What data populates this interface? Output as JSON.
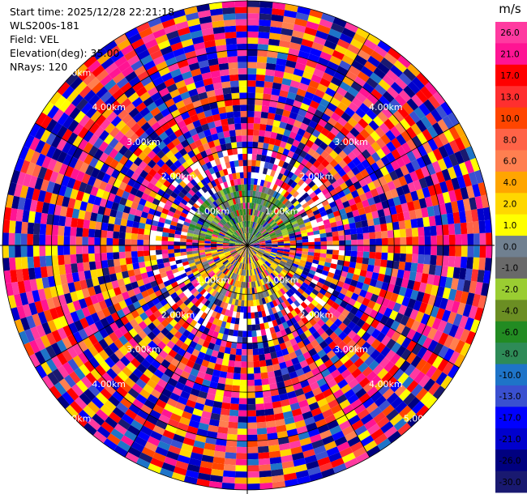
{
  "info": {
    "start_time": "Start time: 2025/12/28 22:21:18",
    "instrument": "WLS200s-181",
    "field": "Field: VEL",
    "elevation": "Elevation(deg): 35.00",
    "nrays": "NRays: 120"
  },
  "chart_data": {
    "type": "heatmap",
    "projection": "polar-ppi",
    "field": "VEL",
    "nrays": 120,
    "max_range_km": 5.0,
    "range_rings_km": [
      1,
      2,
      3,
      4,
      5
    ],
    "spokes_deg": [
      0,
      30,
      60,
      90,
      120,
      150,
      180,
      210,
      240,
      270,
      300,
      330
    ],
    "ring_labels": [
      {
        "text": "1.00km",
        "angle_deg": 45
      },
      {
        "text": "1.00km",
        "angle_deg": 135
      },
      {
        "text": "1.00km",
        "angle_deg": 225
      },
      {
        "text": "1.00km",
        "angle_deg": 315
      },
      {
        "text": "2.00km",
        "angle_deg": 45
      },
      {
        "text": "2.00km",
        "angle_deg": 135
      },
      {
        "text": "2.00km",
        "angle_deg": 225
      },
      {
        "text": "2.00km",
        "angle_deg": 315
      },
      {
        "text": "3.00km",
        "angle_deg": 45
      },
      {
        "text": "3.00km",
        "angle_deg": 135
      },
      {
        "text": "3.00km",
        "angle_deg": 225
      },
      {
        "text": "3.00km",
        "angle_deg": 315
      },
      {
        "text": "4.00km",
        "angle_deg": 45
      },
      {
        "text": "4.00km",
        "angle_deg": 135
      },
      {
        "text": "4.00km",
        "angle_deg": 225
      },
      {
        "text": "4.00km",
        "angle_deg": 315
      },
      {
        "text": "5.00km",
        "angle_deg": 135
      },
      {
        "text": "5.00km",
        "angle_deg": 225
      },
      {
        "text": "5.00km",
        "angle_deg": 315
      }
    ],
    "colorbar": {
      "unit": "m/s",
      "ticks": [
        "26.0",
        "21.0",
        "17.0",
        "13.0",
        "10.0",
        "8.0",
        "6.0",
        "4.0",
        "2.0",
        "1.0",
        "0.0",
        "-1.0",
        "-2.0",
        "-4.0",
        "-6.0",
        "-8.0",
        "-10.0",
        "-13.0",
        "-17.0",
        "-21.0",
        "-26.0",
        "-30.0"
      ],
      "colors": [
        "#ff3aa0",
        "#ff1493",
        "#ff0000",
        "#ff2f2f",
        "#ff4500",
        "#ff6347",
        "#ff7f50",
        "#ffa500",
        "#ffd700",
        "#ffff00",
        "#708090",
        "#696969",
        "#9acd32",
        "#6b8e23",
        "#228b22",
        "#2e8b57",
        "#1e74c8",
        "#3a50d0",
        "#0000ff",
        "#0000cd",
        "#000080",
        "#191970"
      ]
    }
  }
}
